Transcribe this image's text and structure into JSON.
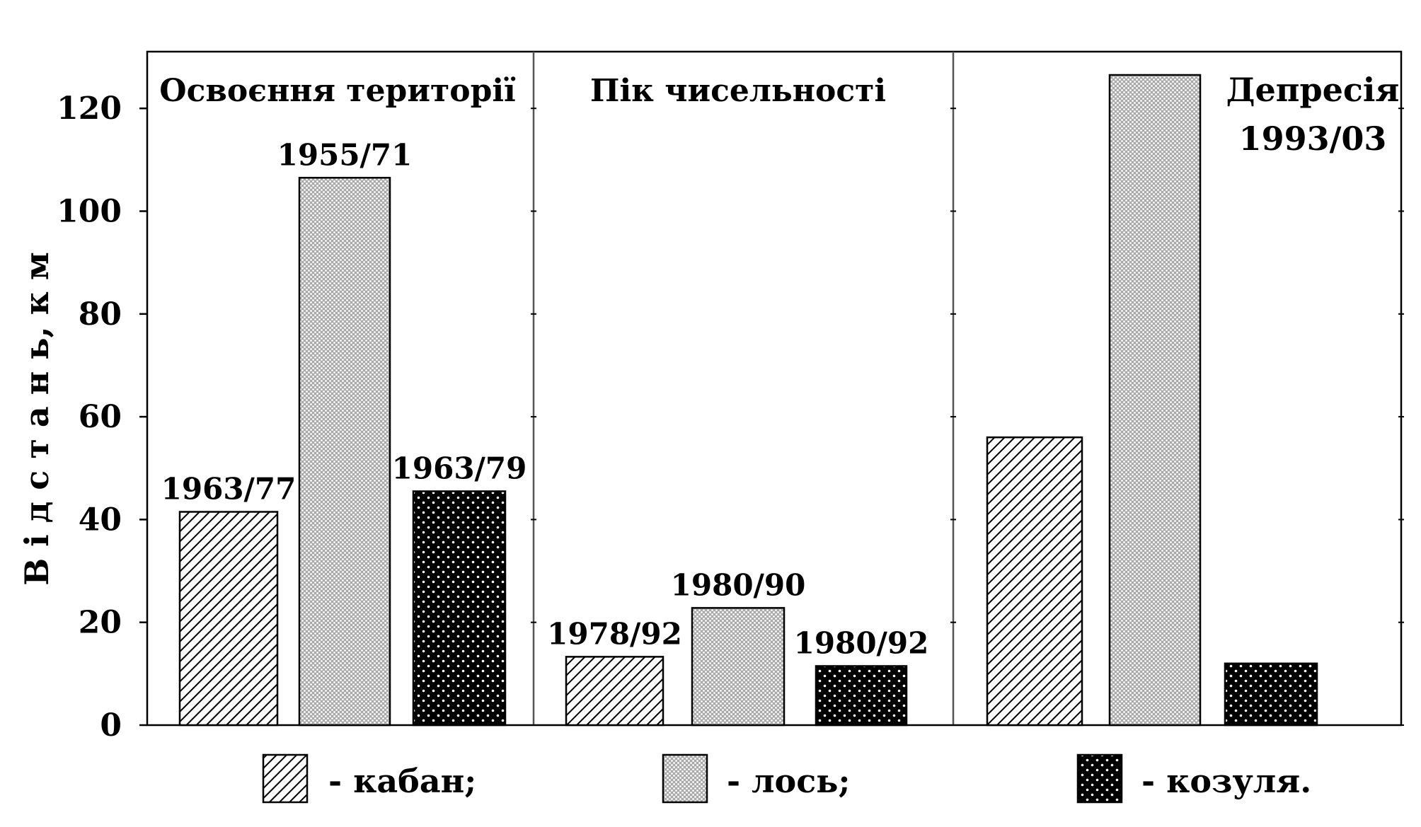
{
  "chart_data": {
    "type": "bar",
    "ylabel": "В і д с т а н ь,  к м",
    "ylim": [
      0,
      132
    ],
    "yticks": [
      0,
      20,
      40,
      60,
      80,
      100,
      120
    ],
    "grid": false,
    "legend_position": "bottom",
    "panels": [
      {
        "title": "Освоєння території",
        "bars": [
          {
            "series": "кабан",
            "value": 41.5,
            "label": "1963/77"
          },
          {
            "series": "лось",
            "value": 106.5,
            "label": "1955/71"
          },
          {
            "series": "козуля",
            "value": 45.5,
            "label": "1963/79"
          }
        ]
      },
      {
        "title": "Пік чисельності",
        "bars": [
          {
            "series": "кабан",
            "value": 13.3,
            "label": "1978/92"
          },
          {
            "series": "лось",
            "value": 22.8,
            "label": "1980/90"
          },
          {
            "series": "козуля",
            "value": 11.5,
            "label": "1980/92"
          }
        ]
      },
      {
        "title": "Депресія",
        "subtitle": "1993/03",
        "bars": [
          {
            "series": "кабан",
            "value": 56.0,
            "label": ""
          },
          {
            "series": "лось",
            "value": 126.5,
            "label": ""
          },
          {
            "series": "козуля",
            "value": 12.0,
            "label": ""
          }
        ]
      }
    ],
    "series": [
      {
        "name": "кабан",
        "legend_label": "- кабан;",
        "pattern": "diagonal-hatch"
      },
      {
        "name": "лось",
        "legend_label": "- лось;",
        "pattern": "fine-dots"
      },
      {
        "name": "козуля",
        "legend_label": "- козуля.",
        "pattern": "dark-dots"
      }
    ]
  }
}
